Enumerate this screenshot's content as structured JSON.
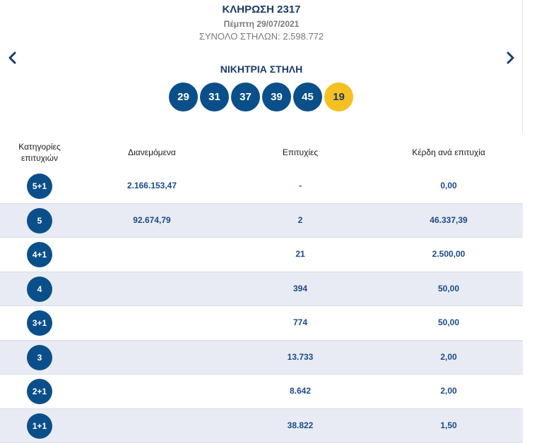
{
  "draw": {
    "title": "ΚΛΗΡΩΣΗ 2317",
    "date": "Πέμπτη 29/07/2021",
    "total_columns": "ΣΥΝΟΛΟ ΣΤΗΛΩΝ: 2.598.772"
  },
  "winning": {
    "label": "ΝΙΚΗΤΡΙΑ ΣΤΗΛΗ",
    "numbers": [
      "29",
      "31",
      "37",
      "39",
      "45"
    ],
    "joker": "19"
  },
  "table": {
    "headers": {
      "category": "Κατηγορίες επιτυχιών",
      "distributed": "Διανεμόμενα",
      "winners": "Επιτυχίες",
      "prize": "Κέρδη ανά επιτυχία"
    },
    "rows": [
      {
        "category": "5+1",
        "distributed": "2.166.153,47",
        "winners": "-",
        "prize": "0,00"
      },
      {
        "category": "5",
        "distributed": "92.674,79",
        "winners": "2",
        "prize": "46.337,39"
      },
      {
        "category": "4+1",
        "distributed": "",
        "winners": "21",
        "prize": "2.500,00"
      },
      {
        "category": "4",
        "distributed": "",
        "winners": "394",
        "prize": "50,00"
      },
      {
        "category": "3+1",
        "distributed": "",
        "winners": "774",
        "prize": "50,00"
      },
      {
        "category": "3",
        "distributed": "",
        "winners": "13.733",
        "prize": "2,00"
      },
      {
        "category": "2+1",
        "distributed": "",
        "winners": "8.642",
        "prize": "2,00"
      },
      {
        "category": "1+1",
        "distributed": "",
        "winners": "38.822",
        "prize": "1,50"
      }
    ]
  },
  "colors": {
    "primary": "#0b4f8a",
    "joker": "#f5c021",
    "row_shade": "#e8ebf3",
    "text_dark_blue": "#1b3c6b"
  },
  "icons": {
    "prev": "chevron-left-icon",
    "next": "chevron-right-icon"
  }
}
